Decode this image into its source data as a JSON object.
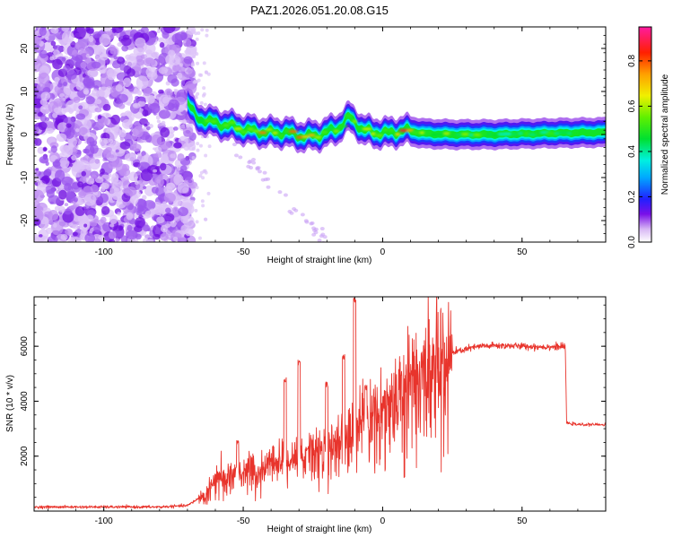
{
  "title": "PAZ1.2026.051.20.08.G15",
  "chart_data": [
    {
      "type": "heatmap",
      "xlabel": "Height of straight line (km)",
      "ylabel": "Frequency (Hz)",
      "xlim": [
        -125,
        80
      ],
      "ylim": [
        -25,
        25
      ],
      "xticks": [
        -100,
        -50,
        0,
        50
      ],
      "yticks": [
        -20,
        -10,
        0,
        10,
        20
      ],
      "colorbar": {
        "label": "Normalized spectral amplitude",
        "range": [
          0.0,
          0.95
        ],
        "ticks": [
          0.0,
          0.2,
          0.4,
          0.6,
          0.8
        ],
        "tick_labels": [
          "0.0",
          "0.2",
          "0.4",
          "0.6",
          "0.8"
        ]
      },
      "ridge": {
        "x": [
          -70,
          -67,
          -62,
          -55,
          -48,
          -42,
          -35,
          -28,
          -22,
          -16,
          -12,
          -10,
          -7,
          -3,
          2,
          8,
          15,
          25,
          40,
          60,
          80
        ],
        "y": [
          7.5,
          4.0,
          3.0,
          2.0,
          1.0,
          0.5,
          0.5,
          -0.5,
          0.0,
          1.5,
          4.0,
          3.0,
          1.0,
          0.5,
          0.3,
          1.0,
          0.2,
          0.0,
          0.0,
          0.3,
          0.5
        ],
        "peak": [
          0.55,
          0.55,
          0.55,
          0.6,
          0.75,
          0.8,
          0.7,
          0.9,
          0.7,
          0.6,
          0.55,
          0.6,
          0.65,
          0.7,
          0.7,
          0.9,
          0.65,
          0.6,
          0.55,
          0.55,
          0.55
        ]
      }
    },
    {
      "type": "line",
      "xlabel": "Height of straight line (km)",
      "ylabel": "SNR (10 * v/v)",
      "xlim": [
        -125,
        80
      ],
      "ylim": [
        0,
        7800
      ],
      "xticks": [
        -100,
        -50,
        0,
        50
      ],
      "yticks": [
        2000,
        4000,
        6000
      ],
      "series": [
        {
          "name": "SNR",
          "color": "#e8342c",
          "envelope_x": [
            -125,
            -80,
            -70,
            -64,
            -60,
            -55,
            -50,
            -45,
            -40,
            -35,
            -30,
            -25,
            -20,
            -15,
            -10,
            -5,
            0,
            5,
            10,
            15,
            20,
            25,
            30,
            35,
            40,
            45,
            50,
            55,
            60,
            65.5,
            66,
            70,
            75,
            80
          ],
          "envelope_y": [
            150,
            150,
            200,
            600,
            1200,
            1300,
            1500,
            1400,
            1700,
            1900,
            2000,
            2200,
            2400,
            2700,
            3000,
            3400,
            3800,
            4400,
            4800,
            5200,
            5500,
            5750,
            5900,
            6000,
            6020,
            6020,
            6000,
            5980,
            5980,
            5980,
            3200,
            3150,
            3150,
            3150
          ],
          "spikes": [
            {
              "x": -52,
              "y": 2600
            },
            {
              "x": -35,
              "y": 4900
            },
            {
              "x": -30,
              "y": 5500
            },
            {
              "x": -27,
              "y": 2400
            },
            {
              "x": -20,
              "y": 4700
            },
            {
              "x": -14,
              "y": 5700
            },
            {
              "x": -10,
              "y": 7800
            },
            {
              "x": -6,
              "y": 4600
            }
          ]
        }
      ]
    }
  ]
}
